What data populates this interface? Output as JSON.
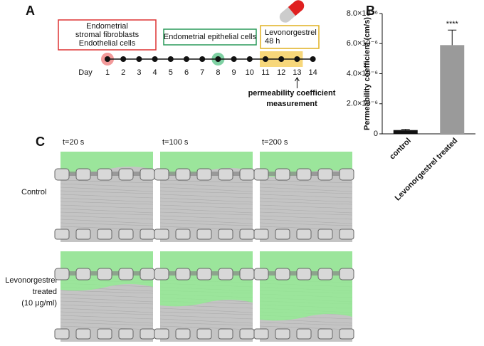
{
  "panel_labels": [
    "A",
    "B",
    "C"
  ],
  "timeline": {
    "day_label": "Day",
    "days": [
      1,
      2,
      3,
      4,
      5,
      6,
      7,
      8,
      9,
      10,
      11,
      12,
      13,
      14
    ],
    "boxes": [
      {
        "lines": [
          "Endometrial",
          "stromal fibroblasts",
          "Endothelial cells"
        ]
      },
      {
        "lines": [
          "Endometrial epithelial cells"
        ]
      },
      {
        "lines": [
          "Levonorgestrel",
          "48 h"
        ]
      }
    ],
    "measurement": [
      "permeability coefficient",
      "measurement"
    ]
  },
  "chart_data": {
    "type": "bar",
    "ylabel": "Permeability coefficient (cm/s)",
    "categories": [
      "control",
      "Levonorgestrel treated"
    ],
    "values": [
      2.5e-07,
      5.9e-06
    ],
    "errors": [
      5e-08,
      1e-06
    ],
    "colors": [
      "#111111",
      "#9a9a9a"
    ],
    "annotation": "****",
    "ylim": [
      0,
      8e-06
    ],
    "yticks": [
      0,
      {
        "value": 2e-06,
        "label": "2.0×10⁻⁶"
      },
      {
        "value": 4e-06,
        "label": "4.0×10⁻⁶"
      },
      {
        "value": 6e-06,
        "label": "6.0×10⁻⁶"
      },
      {
        "value": 8e-06,
        "label": "8.0×10⁻⁶"
      }
    ]
  },
  "images": {
    "times": [
      "t=20 s",
      "t=100 s",
      "t=200 s"
    ],
    "rows": [
      {
        "label": [
          "Control"
        ]
      },
      {
        "label": [
          "Levonorgestrel",
          "treated",
          "(10 μg/ml)"
        ]
      }
    ]
  }
}
